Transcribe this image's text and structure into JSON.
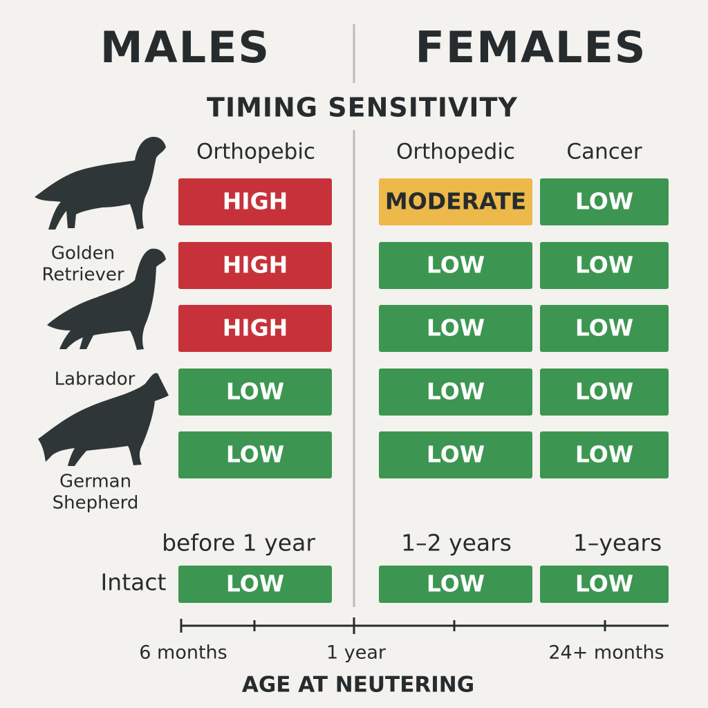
{
  "header": {
    "males": "MALES",
    "females": "FEMALES",
    "subtitle": "TIMING SENSITIVITY"
  },
  "columns": [
    "Orthopebic",
    "Orthopedic",
    "Cancer"
  ],
  "breeds": [
    {
      "lines": [
        "Golden",
        "Retriever"
      ]
    },
    {
      "lines": [
        "Labrador"
      ]
    },
    {
      "lines": [
        "German",
        "Shepherd"
      ]
    }
  ],
  "levels": {
    "HIGH": {
      "fill": "#c7323a",
      "text": "#ffffff"
    },
    "MODERATE": {
      "fill": "#edb94a",
      "text": "#262c2d"
    },
    "LOW": {
      "fill": "#3c9651",
      "text": "#ffffff"
    }
  },
  "table": {
    "rows": [
      [
        "HIGH",
        "MODERATE",
        "LOW"
      ],
      [
        "HIGH",
        "LOW",
        "LOW"
      ],
      [
        "HIGH",
        "LOW",
        "LOW"
      ],
      [
        "LOW",
        "LOW",
        "LOW"
      ],
      [
        "LOW",
        "LOW",
        "LOW"
      ]
    ]
  },
  "periods": [
    "before 1 year",
    "1–2 years",
    "1–years"
  ],
  "intact": {
    "label": "Intact",
    "cells": [
      "LOW",
      "LOW",
      "LOW"
    ]
  },
  "axis": {
    "labels": [
      "6 months",
      "1 year",
      "24+ months"
    ],
    "title": "AGE AT NEUTERING"
  }
}
